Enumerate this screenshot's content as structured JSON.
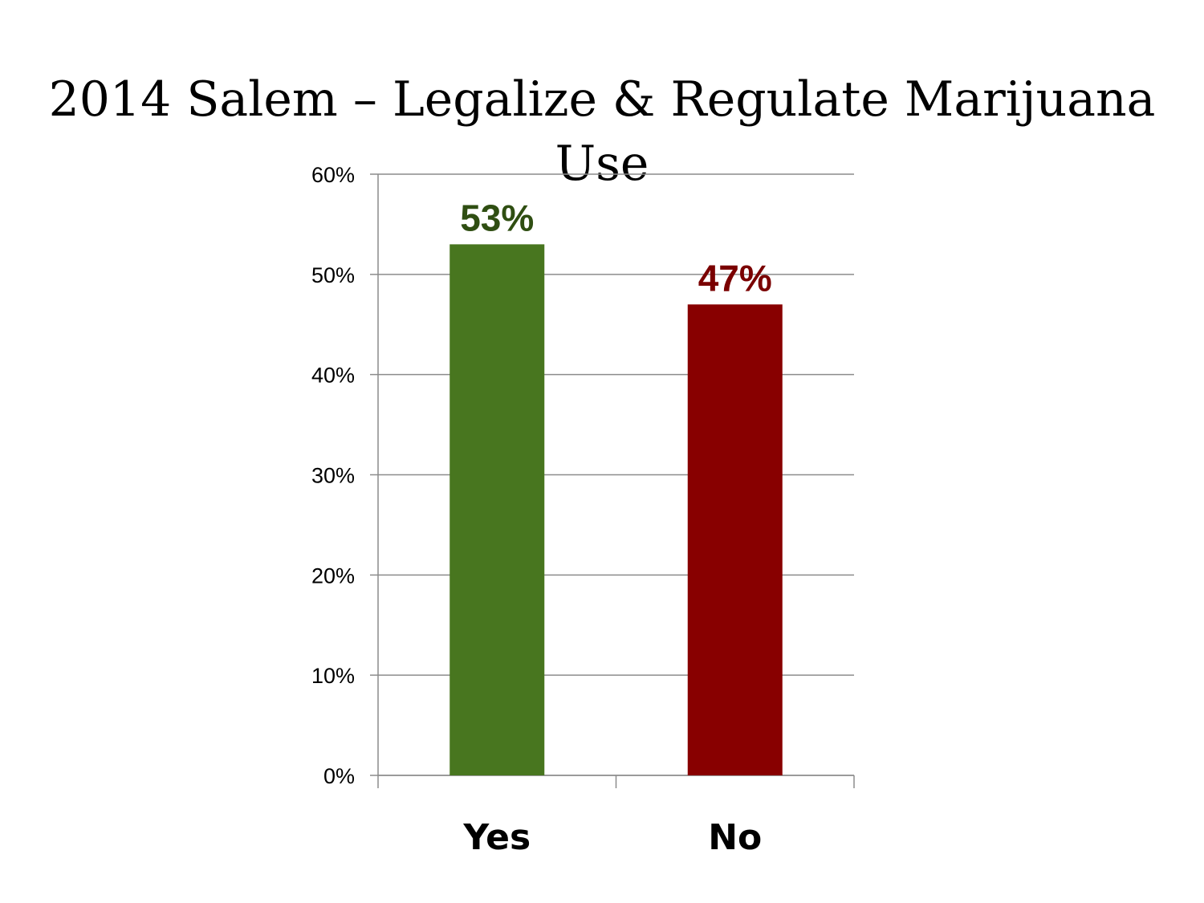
{
  "title": "2014 Salem – Legalize & Regulate Marijuana Use",
  "chart_data": {
    "type": "bar",
    "title": "2014 Salem – Legalize & Regulate Marijuana Use",
    "categories": [
      "Yes",
      "No"
    ],
    "values": [
      53,
      47
    ],
    "value_labels": [
      "53%",
      "47%"
    ],
    "colors": [
      "#48761f",
      "#880000"
    ],
    "label_colors": [
      "#2f4e12",
      "#7a0000"
    ],
    "xlabel": "",
    "ylabel": "",
    "ylim": [
      0,
      60
    ],
    "yticks": [
      0,
      10,
      20,
      30,
      40,
      50,
      60
    ],
    "ytick_labels": [
      "0%",
      "10%",
      "20%",
      "30%",
      "40%",
      "50%",
      "60%"
    ],
    "grid": true,
    "legend": "none"
  }
}
